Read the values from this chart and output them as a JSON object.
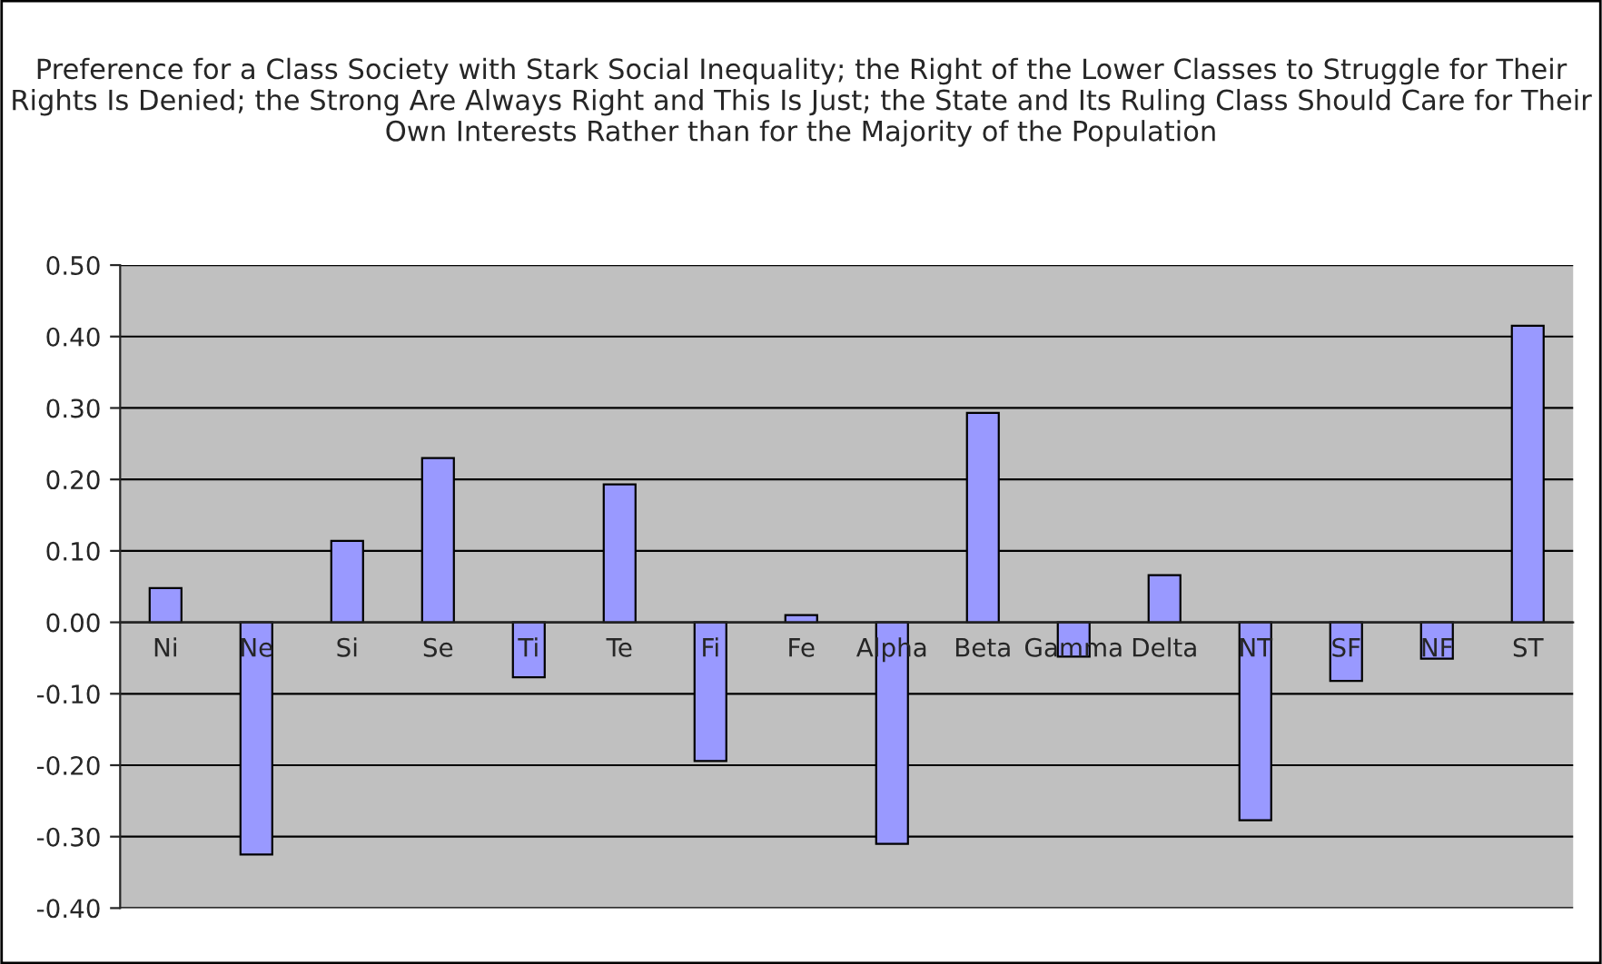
{
  "chart_data": {
    "type": "bar",
    "title": "Preference for a Class Society with Stark Social Inequality; the Right of the Lower Classes to Struggle for Their Rights Is Denied; the Strong Are Always Right and This Is Just; the State and Its Ruling Class Should Care for Their Own Interests Rather than for the Majority of the Population",
    "categories": [
      "Ni",
      "Ne",
      "Si",
      "Se",
      "Ti",
      "Te",
      "Fi",
      "Fe",
      "Alpha",
      "Beta",
      "Gamma",
      "Delta",
      "NT",
      "SF",
      "NF",
      "ST"
    ],
    "values": [
      0.048,
      -0.325,
      0.114,
      0.23,
      -0.077,
      0.193,
      -0.194,
      0.01,
      -0.31,
      0.293,
      -0.048,
      0.066,
      -0.277,
      -0.082,
      -0.051,
      0.415
    ],
    "color": "#9999ff",
    "ylim": [
      -0.4,
      0.5
    ],
    "yticks": [
      {
        "value": -0.4,
        "label": "-0.40"
      },
      {
        "value": -0.3,
        "label": "-0.30"
      },
      {
        "value": -0.2,
        "label": "-0.20"
      },
      {
        "value": -0.1,
        "label": "-0.10"
      },
      {
        "value": 0,
        "label": "0.00"
      },
      {
        "value": 0.1,
        "label": "0.10"
      },
      {
        "value": 0.2,
        "label": "0.20"
      },
      {
        "value": 0.3,
        "label": "0.30"
      },
      {
        "value": 0.4,
        "label": "0.40"
      },
      {
        "value": 0.5,
        "label": "0.50"
      }
    ],
    "grid": "y"
  }
}
